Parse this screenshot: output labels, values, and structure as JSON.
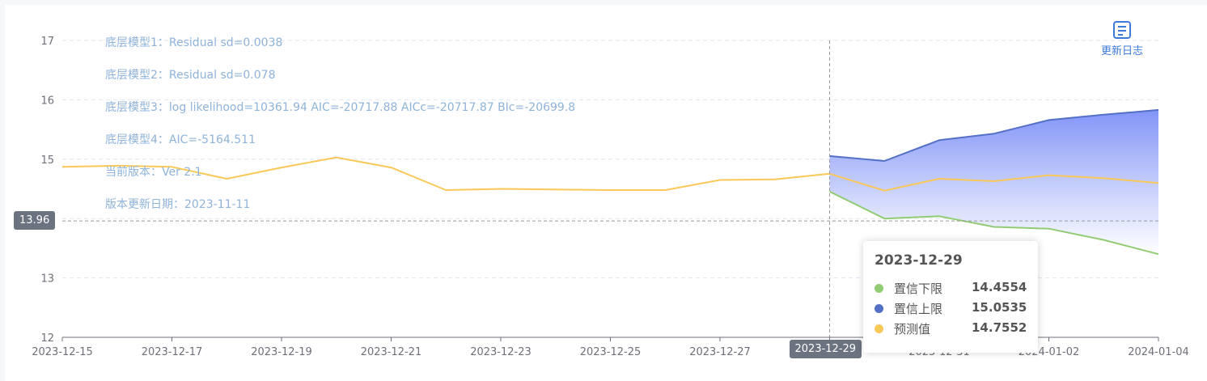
{
  "notes": [
    "底层模型1：Residual sd=0.0038",
    "底层模型2：Residual sd=0.078",
    "底层模型3：log likelihood=10361.94 AIC=-20717.88 AICc=-20717.87 BIc=-20699.8",
    "底层模型4：AIC=-5164.511",
    "当前版本：Ver 2.1",
    "版本更新日期：2023-11-11"
  ],
  "changelog": {
    "label": "更新日志",
    "icon": "document-icon"
  },
  "crosshair": {
    "y_value": 13.96,
    "y_label": "13.96",
    "x_label": "2023-12-29"
  },
  "tooltip": {
    "date": "2023-12-29",
    "rows": [
      {
        "label": "置信下限",
        "value": "14.4554",
        "color": "#91cc75"
      },
      {
        "label": "置信上限",
        "value": "15.0535",
        "color": "#5470c6"
      },
      {
        "label": "预测值",
        "value": "14.7552",
        "color": "#fac858"
      }
    ]
  },
  "chart_data": {
    "type": "line",
    "ylim": [
      12,
      17
    ],
    "yticks": [
      "12",
      "13",
      "14",
      "15",
      "16",
      "17"
    ],
    "xlim": [
      "2023-12-15",
      "2024-01-04"
    ],
    "xticks": [
      "2023-12-15",
      "2023-12-17",
      "2023-12-19",
      "2023-12-21",
      "2023-12-23",
      "2023-12-25",
      "2023-12-27",
      "2023-12-29",
      "2023-12-31",
      "2024-01-02",
      "2024-01-04"
    ],
    "grid": true,
    "colors": {
      "upper": "#5470c6",
      "lower": "#91cc75",
      "pred": "#fac858"
    },
    "series": [
      {
        "name": "预测值",
        "points": [
          [
            "2023-12-15",
            14.87
          ],
          [
            "2023-12-16",
            14.89
          ],
          [
            "2023-12-17",
            14.87
          ],
          [
            "2023-12-18",
            14.67
          ],
          [
            "2023-12-19",
            14.86
          ],
          [
            "2023-12-20",
            15.03
          ],
          [
            "2023-12-21",
            14.86
          ],
          [
            "2023-12-22",
            14.48
          ],
          [
            "2023-12-23",
            14.5
          ],
          [
            "2023-12-24",
            14.49
          ],
          [
            "2023-12-25",
            14.48
          ],
          [
            "2023-12-26",
            14.48
          ],
          [
            "2023-12-27",
            14.65
          ],
          [
            "2023-12-28",
            14.66
          ],
          [
            "2023-12-29",
            14.7552
          ],
          [
            "2023-12-30",
            14.47
          ],
          [
            "2023-12-31",
            14.67
          ],
          [
            "2024-01-01",
            14.63
          ],
          [
            "2024-01-02",
            14.73
          ],
          [
            "2024-01-03",
            14.68
          ],
          [
            "2024-01-04",
            14.6
          ]
        ]
      },
      {
        "name": "置信上限",
        "points": [
          [
            "2023-12-29",
            15.0535
          ],
          [
            "2023-12-30",
            14.97
          ],
          [
            "2023-12-31",
            15.32
          ],
          [
            "2024-01-01",
            15.43
          ],
          [
            "2024-01-02",
            15.66
          ],
          [
            "2024-01-03",
            15.75
          ],
          [
            "2024-01-04",
            15.83
          ]
        ]
      },
      {
        "name": "置信下限",
        "points": [
          [
            "2023-12-29",
            14.4554
          ],
          [
            "2023-12-30",
            14.0
          ],
          [
            "2023-12-31",
            14.04
          ],
          [
            "2024-01-01",
            13.86
          ],
          [
            "2024-01-02",
            13.83
          ],
          [
            "2024-01-03",
            13.64
          ],
          [
            "2024-01-04",
            13.4
          ]
        ]
      }
    ]
  }
}
